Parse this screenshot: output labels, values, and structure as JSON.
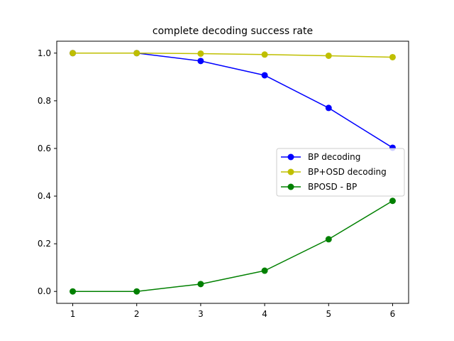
{
  "chart_data": {
    "type": "line",
    "title": "complete decoding success rate",
    "xlabel": "",
    "ylabel": "",
    "x": [
      1,
      2,
      3,
      4,
      5,
      6
    ],
    "xlim": [
      0.75,
      6.25
    ],
    "ylim": [
      -0.05,
      1.05
    ],
    "xticks": [
      "1",
      "2",
      "3",
      "4",
      "5",
      "6"
    ],
    "yticks": [
      "0.0",
      "0.2",
      "0.4",
      "0.6",
      "0.8",
      "1.0"
    ],
    "grid": false,
    "legend_position": "center-right",
    "series": [
      {
        "name": "BP decoding",
        "color": "#0000ff",
        "marker": "circle",
        "values": [
          1.0,
          1.0,
          0.967,
          0.907,
          0.77,
          0.603
        ]
      },
      {
        "name": "BP+OSD decoding",
        "color": "#bfbf00",
        "marker": "circle",
        "values": [
          1.0,
          1.0,
          0.998,
          0.994,
          0.989,
          0.983
        ]
      },
      {
        "name": "BPOSD - BP",
        "color": "#008000",
        "marker": "circle",
        "values": [
          0.0,
          0.0,
          0.031,
          0.087,
          0.219,
          0.38
        ]
      }
    ]
  }
}
